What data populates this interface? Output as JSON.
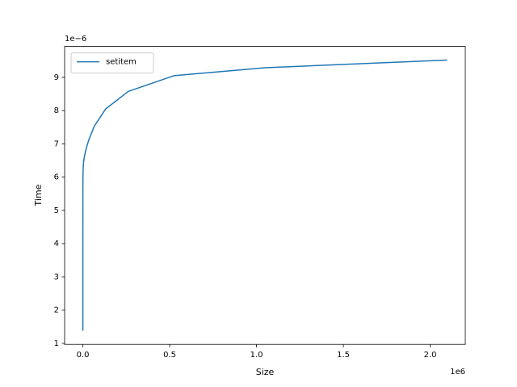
{
  "chart_data": {
    "type": "line",
    "x_label": "Size",
    "y_label": "Time",
    "x_offset_label": "1e6",
    "y_offset_label": "1e−6",
    "x": [
      1e-06,
      2e-06,
      4e-06,
      8e-06,
      1.6e-05,
      3.2e-05,
      6.4e-05,
      0.000128,
      0.000256,
      0.000512,
      0.001024,
      0.002048,
      0.004096,
      0.008192,
      0.016384,
      0.032768,
      0.065536,
      0.131072,
      0.262144,
      0.524288,
      1.048576,
      2.097152
    ],
    "series": [
      {
        "name": "setitem",
        "color": "#1f77b4",
        "values": [
          1.38,
          2.1,
          2.8,
          3.5,
          4.1,
          4.7,
          5.1,
          5.5,
          5.8,
          6.0,
          6.15,
          6.3,
          6.45,
          6.6,
          6.8,
          7.1,
          7.53,
          8.05,
          8.58,
          9.05,
          9.29,
          9.52
        ]
      }
    ],
    "xlim": [
      -0.105,
      2.202
    ],
    "ylim": [
      0.97,
      9.93
    ],
    "xticks": [
      {
        "value": 0,
        "label": "0.0"
      },
      0.5,
      {
        "value": 1,
        "label": "1.0"
      },
      1.5,
      {
        "value": 2,
        "label": "2.0"
      }
    ],
    "yticks": [
      1,
      2,
      3,
      4,
      5,
      6,
      7,
      8,
      9
    ],
    "legend": "upper left",
    "grid": false
  }
}
